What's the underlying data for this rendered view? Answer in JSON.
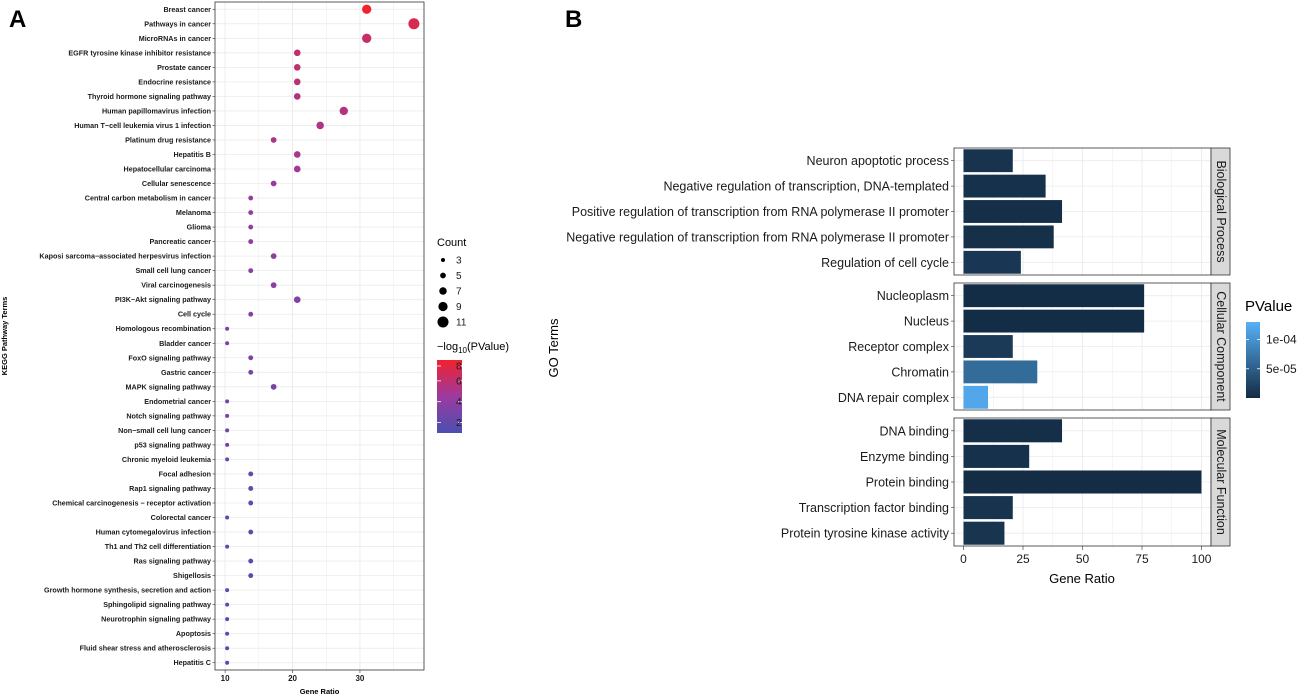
{
  "chart_data": [
    {
      "type": "scatter",
      "panel": "A",
      "xlabel": "Gene Ratio",
      "ylabel": "KEGG Pathway Terms",
      "xlim": [
        8.5,
        39.5
      ],
      "xticks": [
        10,
        20,
        30
      ],
      "color_scale": {
        "name": "-log10(PValue)",
        "min": 1,
        "max": 8,
        "low": "#4a4fb0",
        "high": "#f0222e"
      },
      "size_legend": {
        "title": "Count",
        "values": [
          3,
          5,
          7,
          9,
          11
        ]
      },
      "color_legend": {
        "title_prefix": "−log",
        "title_sub": "10",
        "title_suffix": "(PValue)",
        "ticks": [
          8,
          6,
          4,
          2
        ]
      },
      "points": [
        {
          "term": "Breast cancer",
          "x": 31,
          "count": 9,
          "logp": 8.0
        },
        {
          "term": "Pathways in cancer",
          "x": 38,
          "count": 11,
          "logp": 7.0
        },
        {
          "term": "MicroRNAs in cancer",
          "x": 31,
          "count": 9,
          "logp": 6.2
        },
        {
          "term": "EGFR tyrosine kinase inhibitor resistance",
          "x": 20.7,
          "count": 6,
          "logp": 6.0
        },
        {
          "term": "Prostate cancer",
          "x": 20.7,
          "count": 6,
          "logp": 6.0
        },
        {
          "term": "Endocrine resistance",
          "x": 20.7,
          "count": 6,
          "logp": 5.8
        },
        {
          "term": "Thyroid hormone signaling pathway",
          "x": 20.7,
          "count": 6,
          "logp": 5.6
        },
        {
          "term": "Human papillomavirus infection",
          "x": 27.6,
          "count": 8,
          "logp": 5.5
        },
        {
          "term": "Human T−cell leukemia virus 1 infection",
          "x": 24.1,
          "count": 7,
          "logp": 5.3
        },
        {
          "term": "Platinum drug resistance",
          "x": 17.2,
          "count": 5,
          "logp": 5.1
        },
        {
          "term": "Hepatitis B",
          "x": 20.7,
          "count": 6,
          "logp": 5.0
        },
        {
          "term": "Hepatocellular carcinoma",
          "x": 20.7,
          "count": 6,
          "logp": 4.8
        },
        {
          "term": "Cellular senescence",
          "x": 17.2,
          "count": 5,
          "logp": 4.3
        },
        {
          "term": "Central carbon metabolism in cancer",
          "x": 13.8,
          "count": 4,
          "logp": 4.2
        },
        {
          "term": "Melanoma",
          "x": 13.8,
          "count": 4,
          "logp": 4.1
        },
        {
          "term": "Glioma",
          "x": 13.8,
          "count": 4,
          "logp": 4.0
        },
        {
          "term": "Pancreatic cancer",
          "x": 13.8,
          "count": 4,
          "logp": 4.0
        },
        {
          "term": "Kaposi sarcoma−associated herpesvirus infection",
          "x": 17.2,
          "count": 5,
          "logp": 3.9
        },
        {
          "term": "Small cell lung cancer",
          "x": 13.8,
          "count": 4,
          "logp": 3.8
        },
        {
          "term": "Viral carcinogenesis",
          "x": 17.2,
          "count": 5,
          "logp": 3.7
        },
        {
          "term": "PI3K−Akt signaling pathway",
          "x": 20.7,
          "count": 6,
          "logp": 3.5
        },
        {
          "term": "Cell cycle",
          "x": 13.8,
          "count": 4,
          "logp": 3.4
        },
        {
          "term": "Homologous recombination",
          "x": 10.3,
          "count": 3,
          "logp": 3.3
        },
        {
          "term": "Bladder cancer",
          "x": 10.3,
          "count": 3,
          "logp": 3.2
        },
        {
          "term": "FoxO signaling pathway",
          "x": 13.8,
          "count": 4,
          "logp": 3.1
        },
        {
          "term": "Gastric cancer",
          "x": 13.8,
          "count": 4,
          "logp": 3.0
        },
        {
          "term": "MAPK signaling pathway",
          "x": 17.2,
          "count": 5,
          "logp": 2.9
        },
        {
          "term": "Endometrial cancer",
          "x": 10.3,
          "count": 3,
          "logp": 2.8
        },
        {
          "term": "Notch signaling pathway",
          "x": 10.3,
          "count": 3,
          "logp": 2.7
        },
        {
          "term": "Non−small cell lung cancer",
          "x": 10.3,
          "count": 3,
          "logp": 2.6
        },
        {
          "term": "p53 signaling pathway",
          "x": 10.3,
          "count": 3,
          "logp": 2.5
        },
        {
          "term": "Chronic myeloid leukemia",
          "x": 10.3,
          "count": 3,
          "logp": 2.4
        },
        {
          "term": "Focal adhesion",
          "x": 13.8,
          "count": 4,
          "logp": 2.3
        },
        {
          "term": "Rap1 signaling pathway",
          "x": 13.8,
          "count": 4,
          "logp": 2.2
        },
        {
          "term": "Chemical carcinogenesis − receptor activation",
          "x": 13.8,
          "count": 4,
          "logp": 2.1
        },
        {
          "term": "Colorectal cancer",
          "x": 10.3,
          "count": 3,
          "logp": 2.0
        },
        {
          "term": "Human cytomegalovirus infection",
          "x": 13.8,
          "count": 4,
          "logp": 1.9
        },
        {
          "term": "Th1 and Th2 cell differentiation",
          "x": 10.3,
          "count": 3,
          "logp": 1.9
        },
        {
          "term": "Ras signaling pathway",
          "x": 13.8,
          "count": 4,
          "logp": 1.8
        },
        {
          "term": "Shigellosis",
          "x": 13.8,
          "count": 4,
          "logp": 1.8
        },
        {
          "term": "Growth hormone synthesis, secretion and action",
          "x": 10.3,
          "count": 3,
          "logp": 1.7
        },
        {
          "term": "Sphingolipid signaling pathway",
          "x": 10.3,
          "count": 3,
          "logp": 1.7
        },
        {
          "term": "Neurotrophin signaling pathway",
          "x": 10.3,
          "count": 3,
          "logp": 1.6
        },
        {
          "term": "Apoptosis",
          "x": 10.3,
          "count": 3,
          "logp": 1.6
        },
        {
          "term": "Fluid shear stress and atherosclerosis",
          "x": 10.3,
          "count": 3,
          "logp": 1.5
        },
        {
          "term": "Hepatitis C",
          "x": 10.3,
          "count": 3,
          "logp": 1.5
        }
      ]
    },
    {
      "type": "bar",
      "panel": "B",
      "orientation": "horizontal",
      "xlabel": "Gene Ratio",
      "ylabel": "GO Terms",
      "xlim": [
        -4,
        104
      ],
      "xticks": [
        0,
        25,
        50,
        75,
        100
      ],
      "color_scale": {
        "name": "PValue",
        "min": 0,
        "max": 0.00013,
        "low": "#132b43",
        "high": "#56b1f7"
      },
      "legend": {
        "title": "PValue",
        "ticks": [
          {
            "label": "1e-04",
            "value": 0.0001
          },
          {
            "label": "5e-05",
            "value": 5e-05
          }
        ]
      },
      "facets": [
        {
          "name": "Biological Process",
          "bars": [
            {
              "term": "Neuron apoptotic process",
              "value": 20.7,
              "pvalue": 8e-06
            },
            {
              "term": "Negative regulation of transcription, DNA-templated",
              "value": 34.5,
              "pvalue": 6e-06
            },
            {
              "term": "Positive regulation of transcription from RNA polymerase II promoter",
              "value": 41.4,
              "pvalue": 4e-06
            },
            {
              "term": "Negative regulation of transcription from RNA polymerase II promoter",
              "value": 37.9,
              "pvalue": 5e-06
            },
            {
              "term": "Regulation of cell cycle",
              "value": 24.1,
              "pvalue": 1.2e-05
            }
          ]
        },
        {
          "name": "Cellular Component",
          "bars": [
            {
              "term": "Nucleoplasm",
              "value": 75.9,
              "pvalue": 2e-06
            },
            {
              "term": "Nucleus",
              "value": 75.9,
              "pvalue": 2e-06
            },
            {
              "term": "Receptor complex",
              "value": 20.7,
              "pvalue": 1.5e-05
            },
            {
              "term": "Chromatin",
              "value": 31.0,
              "pvalue": 6.2e-05
            },
            {
              "term": "DNA repair complex",
              "value": 10.3,
              "pvalue": 0.00012
            }
          ]
        },
        {
          "name": "Molecular Function",
          "bars": [
            {
              "term": "DNA binding",
              "value": 41.4,
              "pvalue": 4e-06
            },
            {
              "term": "Enzyme binding",
              "value": 27.6,
              "pvalue": 6e-06
            },
            {
              "term": "Protein binding",
              "value": 100,
              "pvalue": 1e-06
            },
            {
              "term": "Transcription factor binding",
              "value": 20.7,
              "pvalue": 8e-06
            },
            {
              "term": "Protein tyrosine kinase activity",
              "value": 17.2,
              "pvalue": 9e-06
            }
          ]
        }
      ]
    }
  ]
}
